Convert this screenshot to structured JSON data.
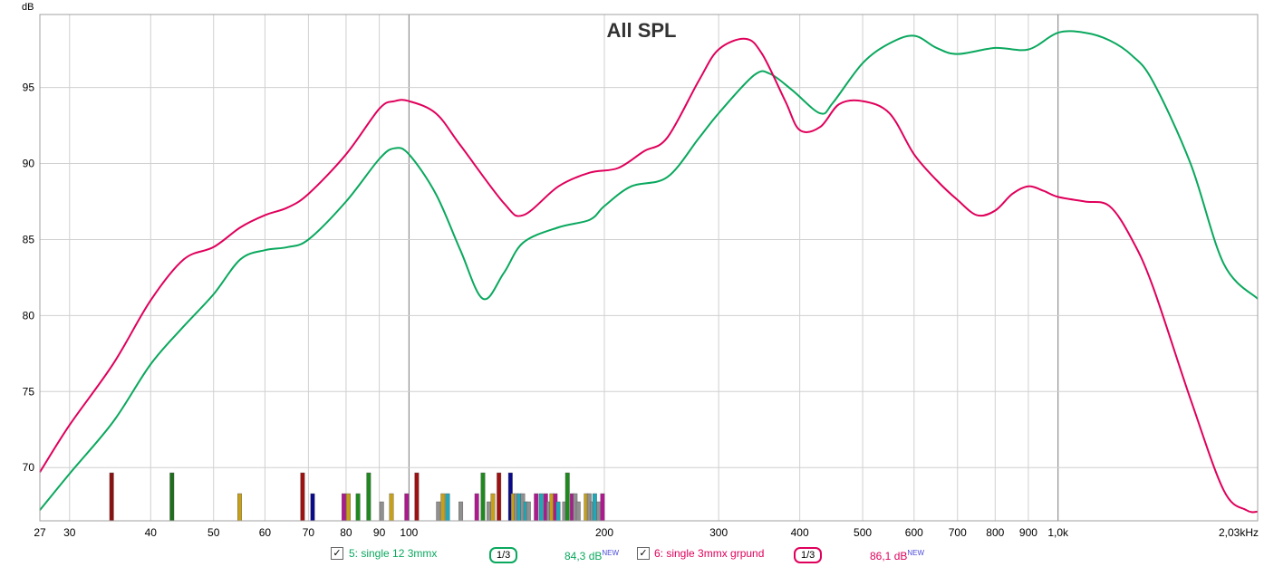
{
  "chart_data": {
    "type": "line",
    "title": "All SPL",
    "ylabel": "dB",
    "xscale": "log",
    "xlim": [
      27,
      2030
    ],
    "ylim": [
      66.5,
      99.8
    ],
    "x_ticks": [
      {
        "value": 27,
        "label": "27"
      },
      {
        "value": 30,
        "label": "30"
      },
      {
        "value": 40,
        "label": "40"
      },
      {
        "value": 50,
        "label": "50"
      },
      {
        "value": 60,
        "label": "60"
      },
      {
        "value": 70,
        "label": "70"
      },
      {
        "value": 80,
        "label": "80"
      },
      {
        "value": 90,
        "label": "90"
      },
      {
        "value": 100,
        "label": "100"
      },
      {
        "value": 200,
        "label": "200"
      },
      {
        "value": 300,
        "label": "300"
      },
      {
        "value": 400,
        "label": "400"
      },
      {
        "value": 500,
        "label": "500"
      },
      {
        "value": 600,
        "label": "600"
      },
      {
        "value": 700,
        "label": "700"
      },
      {
        "value": 800,
        "label": "800"
      },
      {
        "value": 900,
        "label": "900"
      },
      {
        "value": 1000,
        "label": "1,0k"
      },
      {
        "value": 2030,
        "label": "2,03kHz"
      }
    ],
    "y_ticks": [
      70,
      75,
      80,
      85,
      90,
      95
    ],
    "grid": true,
    "series": [
      {
        "name": "5: single 12 3mmx",
        "color": "#0aa85e",
        "smoothing": "1/3",
        "level": "84,3 dB",
        "x": [
          27,
          30,
          35,
          40,
          45,
          50,
          55,
          60,
          65,
          70,
          80,
          90,
          95,
          100,
          110,
          120,
          130,
          140,
          150,
          170,
          190,
          200,
          220,
          250,
          280,
          300,
          340,
          360,
          390,
          430,
          450,
          500,
          550,
          600,
          650,
          700,
          800,
          900,
          1000,
          1100,
          1200,
          1300,
          1400,
          1600,
          1800,
          2030
        ],
        "y": [
          67.2,
          69.6,
          73.0,
          76.8,
          79.3,
          81.4,
          83.7,
          84.3,
          84.5,
          85.0,
          87.5,
          90.3,
          91.0,
          90.6,
          88.0,
          84.3,
          81.1,
          82.8,
          84.8,
          85.8,
          86.3,
          87.2,
          88.5,
          89.1,
          91.7,
          93.3,
          95.8,
          95.9,
          94.8,
          93.3,
          94.0,
          96.6,
          97.9,
          98.4,
          97.6,
          97.2,
          97.6,
          97.5,
          98.6,
          98.6,
          98.1,
          97.1,
          95.4,
          90.0,
          83.4,
          81.1
        ]
      },
      {
        "name": "6: single 3mmx grpund",
        "color": "#e0005b",
        "smoothing": "1/3",
        "level": "86,1 dB",
        "x": [
          27,
          30,
          35,
          40,
          45,
          50,
          55,
          60,
          65,
          70,
          80,
          90,
          95,
          100,
          110,
          120,
          140,
          150,
          170,
          190,
          210,
          230,
          250,
          280,
          300,
          330,
          350,
          380,
          400,
          430,
          460,
          500,
          550,
          600,
          650,
          700,
          750,
          800,
          850,
          900,
          950,
          1000,
          1100,
          1200,
          1300,
          1400,
          1600,
          1800,
          1950,
          2030
        ],
        "y": [
          69.7,
          72.8,
          76.8,
          81.0,
          83.7,
          84.5,
          85.8,
          86.6,
          87.1,
          88.0,
          90.6,
          93.6,
          94.1,
          94.1,
          93.3,
          91.2,
          87.4,
          86.6,
          88.5,
          89.4,
          89.7,
          90.8,
          91.7,
          95.5,
          97.5,
          98.2,
          97.2,
          94.1,
          92.2,
          92.4,
          93.9,
          94.1,
          93.3,
          90.6,
          88.9,
          87.6,
          86.6,
          86.9,
          88.0,
          88.5,
          88.2,
          87.8,
          87.5,
          87.2,
          85.0,
          81.9,
          74.5,
          68.5,
          67.2,
          67.1
        ]
      }
    ],
    "bar_markers": [
      {
        "x": 34.8,
        "level": 2,
        "color": "#8b1010"
      },
      {
        "x": 43.1,
        "level": 2,
        "color": "#1e6e1e"
      },
      {
        "x": 54.8,
        "level": 1,
        "color": "#c8a018"
      },
      {
        "x": 68.5,
        "level": 2,
        "color": "#a01010"
      },
      {
        "x": 71.0,
        "level": 1,
        "color": "#0a0a8a"
      },
      {
        "x": 79.3,
        "level": 1,
        "color": "#b01890"
      },
      {
        "x": 80.6,
        "level": 1,
        "color": "#c8a018"
      },
      {
        "x": 83.4,
        "level": 1,
        "color": "#1e8a1e"
      },
      {
        "x": 86.6,
        "level": 2,
        "color": "#1e8a1e"
      },
      {
        "x": 90.7,
        "level": 0,
        "color": "#909090"
      },
      {
        "x": 93.9,
        "level": 1,
        "color": "#c8a018"
      },
      {
        "x": 99.1,
        "level": 1,
        "color": "#b01890"
      },
      {
        "x": 102.7,
        "level": 2,
        "color": "#a01010"
      },
      {
        "x": 110.9,
        "level": 0,
        "color": "#909090"
      },
      {
        "x": 112.7,
        "level": 1,
        "color": "#c8a018"
      },
      {
        "x": 114.6,
        "level": 1,
        "color": "#20a8b8"
      },
      {
        "x": 120.1,
        "level": 0,
        "color": "#909090"
      },
      {
        "x": 127.1,
        "level": 1,
        "color": "#b01890"
      },
      {
        "x": 129.9,
        "level": 2,
        "color": "#1e8a1e"
      },
      {
        "x": 132.7,
        "level": 0,
        "color": "#909090"
      },
      {
        "x": 134.6,
        "level": 1,
        "color": "#c8a018"
      },
      {
        "x": 137.5,
        "level": 2,
        "color": "#a01010"
      },
      {
        "x": 143.2,
        "level": 2,
        "color": "#0a0a8a"
      },
      {
        "x": 144.6,
        "level": 1,
        "color": "#c8a018"
      },
      {
        "x": 146.2,
        "level": 1,
        "color": "#909090"
      },
      {
        "x": 147.7,
        "level": 1,
        "color": "#20a8b8"
      },
      {
        "x": 149.6,
        "level": 1,
        "color": "#909090"
      },
      {
        "x": 151.2,
        "level": 0,
        "color": "#20a8b8"
      },
      {
        "x": 152.7,
        "level": 0,
        "color": "#909090"
      },
      {
        "x": 156.9,
        "level": 1,
        "color": "#b01890"
      },
      {
        "x": 159.7,
        "level": 1,
        "color": "#20a8b8"
      },
      {
        "x": 162.3,
        "level": 1,
        "color": "#b01890"
      },
      {
        "x": 164.1,
        "level": 0,
        "color": "#909090"
      },
      {
        "x": 165.8,
        "level": 1,
        "color": "#c8a018"
      },
      {
        "x": 167.9,
        "level": 1,
        "color": "#b01890"
      },
      {
        "x": 169.6,
        "level": 0,
        "color": "#20a8b8"
      },
      {
        "x": 173.5,
        "level": 0,
        "color": "#909090"
      },
      {
        "x": 175.3,
        "level": 2,
        "color": "#1e8a1e"
      },
      {
        "x": 178.3,
        "level": 1,
        "color": "#b01890"
      },
      {
        "x": 180.2,
        "level": 1,
        "color": "#909090"
      },
      {
        "x": 182.2,
        "level": 0,
        "color": "#909090"
      },
      {
        "x": 187.3,
        "level": 1,
        "color": "#c8a018"
      },
      {
        "x": 189.4,
        "level": 1,
        "color": "#909090"
      },
      {
        "x": 191.5,
        "level": 0,
        "color": "#909090"
      },
      {
        "x": 193.1,
        "level": 1,
        "color": "#20a8b8"
      },
      {
        "x": 195.9,
        "level": 0,
        "color": "#909090"
      },
      {
        "x": 198.5,
        "level": 1,
        "color": "#b01890"
      }
    ]
  },
  "legend": {
    "items": [
      {
        "checked_glyph": "✓",
        "name": "5: single 12 3mmx",
        "smoothing": "1/3",
        "level": "84,3 dB",
        "badge": "NEW",
        "color": "#0aa85e"
      },
      {
        "checked_glyph": "✓",
        "name": "6: single 3mmx grpund",
        "smoothing": "1/3",
        "level": "86,1 dB",
        "badge": "NEW",
        "color": "#e0005b"
      }
    ]
  },
  "colors": {
    "grid": "#d0d0d0",
    "major_grid": "#7a7a7a",
    "frame": "#a0a0a0"
  }
}
